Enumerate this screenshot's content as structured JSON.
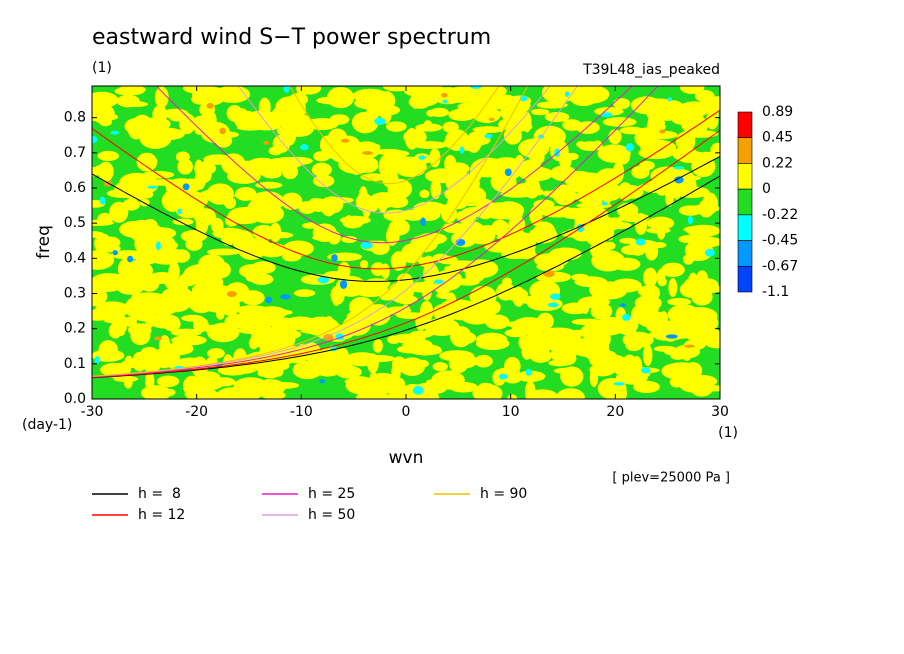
{
  "chart_data": {
    "type": "contour",
    "title": "eastward wind S−T power spectrum",
    "subtitle": "(1)",
    "run_name": "T39L48_ias_peaked",
    "ylabel": "freq",
    "xlabel": "wvn",
    "yunit": "(day-1)",
    "xunit": "(1)",
    "note": "[ plev=25000 Pa ]",
    "xlim": [
      -30,
      30
    ],
    "xticks": [
      -30,
      -20,
      -10,
      0,
      10,
      20,
      30
    ],
    "ylim": [
      0,
      0.89
    ],
    "yticks": [
      {
        "value": 0,
        "label": "0.0"
      },
      0.1,
      0.2,
      0.3,
      0.4,
      0.5,
      0.6,
      0.7,
      0.8
    ],
    "colorbar": {
      "levels": [
        0.89,
        0.45,
        0.22,
        0,
        -0.22,
        -0.45,
        -0.67,
        -1.1
      ],
      "colors": [
        "#ff0000",
        "#f5a000",
        "#ffff00",
        "#22dd22",
        "#00ffff",
        "#0099ff",
        "#0044ff"
      ]
    },
    "series": [
      {
        "name": "h =  8",
        "h": 8,
        "color": "#000000"
      },
      {
        "name": "h = 12",
        "h": 12,
        "color": "#ff0000"
      },
      {
        "name": "h = 25",
        "h": 25,
        "color": "#e020c0"
      },
      {
        "name": "h = 50",
        "h": 50,
        "color": "#dda0dd"
      },
      {
        "name": "h = 90",
        "h": 90,
        "color": "#f0c000"
      }
    ]
  }
}
